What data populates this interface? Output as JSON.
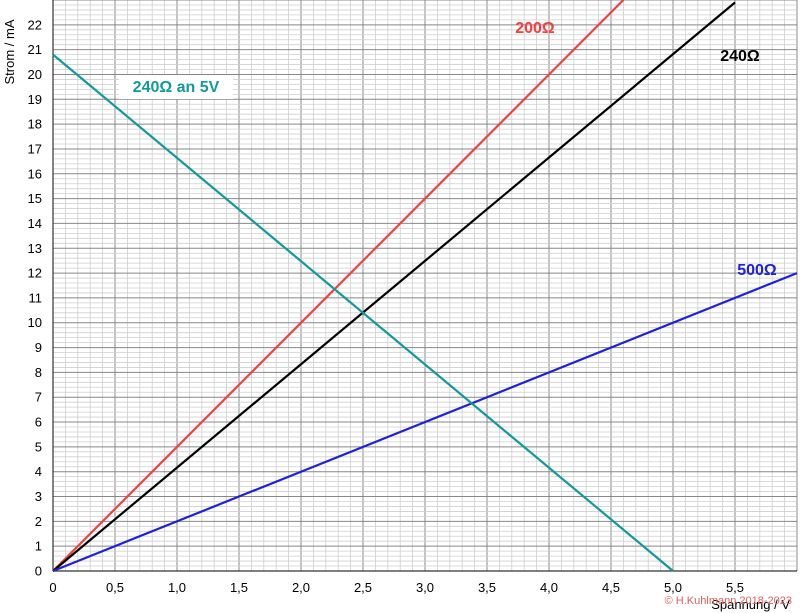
{
  "chart_data": {
    "type": "line",
    "title": "",
    "xlabel": "Spannung / V",
    "ylabel": "Strom / mA",
    "xlim": [
      0,
      6
    ],
    "ylim": [
      0,
      23
    ],
    "grid": true,
    "x_tick_labels": [
      "0",
      "0,5",
      "1,0",
      "1,5",
      "2,0",
      "2,5",
      "3,0",
      "3,5",
      "4,0",
      "4,5",
      "5,0",
      "5,5"
    ],
    "y_tick_labels": [
      "0",
      "1",
      "2",
      "3",
      "4",
      "5",
      "6",
      "7",
      "8",
      "9",
      "10",
      "11",
      "12",
      "13",
      "14",
      "15",
      "16",
      "17",
      "18",
      "19",
      "20",
      "21",
      "22"
    ],
    "series": [
      {
        "name": "200Ω",
        "color": "#f04040",
        "x": [
          0,
          4.6
        ],
        "y": [
          0,
          23
        ]
      },
      {
        "name": "240Ω",
        "color": "#000000",
        "x": [
          0,
          5.5
        ],
        "y": [
          0,
          22.9
        ]
      },
      {
        "name": "500Ω",
        "color": "#2020dd",
        "x": [
          0,
          6
        ],
        "y": [
          0,
          12
        ]
      },
      {
        "name": "240Ω an 5V",
        "color": "#129a9a",
        "x": [
          0,
          5
        ],
        "y": [
          20.8,
          0
        ]
      }
    ],
    "copyright": "© H.Kuhlmann 2018-2023"
  }
}
